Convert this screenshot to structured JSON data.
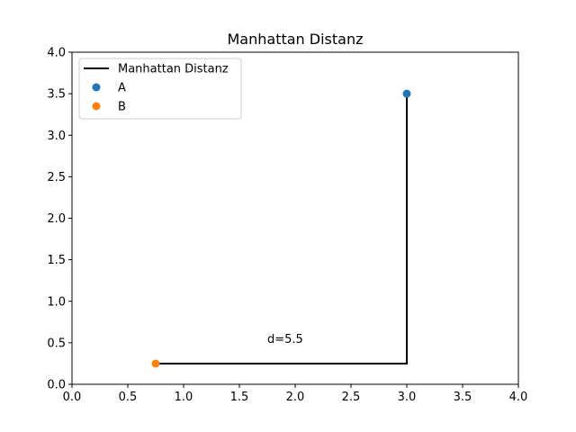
{
  "chart_data": {
    "type": "line",
    "title": "Manhattan Distanz",
    "xlabel": "",
    "ylabel": "",
    "xlim": [
      0,
      4
    ],
    "ylim": [
      0,
      4
    ],
    "x_ticks": [
      "0.0",
      "0.5",
      "1.0",
      "1.5",
      "2.0",
      "2.5",
      "3.0",
      "3.5",
      "4.0"
    ],
    "y_ticks": [
      "0.0",
      "0.5",
      "1.0",
      "1.5",
      "2.0",
      "2.5",
      "3.0",
      "3.5",
      "4.0"
    ],
    "grid": false,
    "legend_position": "top-left",
    "series": [
      {
        "name": "Manhattan Distanz",
        "kind": "line",
        "color": "#000000",
        "x": [
          0.75,
          3.0,
          3.0
        ],
        "y": [
          0.25,
          0.25,
          3.5
        ]
      },
      {
        "name": "A",
        "kind": "scatter",
        "color": "#1f77b4",
        "x": [
          3.0
        ],
        "y": [
          3.5
        ]
      },
      {
        "name": "B",
        "kind": "scatter",
        "color": "#ff7f0e",
        "x": [
          0.75
        ],
        "y": [
          0.25
        ]
      }
    ],
    "annotations": [
      {
        "text": "d=5.5",
        "x": 1.75,
        "y": 0.5
      }
    ]
  }
}
